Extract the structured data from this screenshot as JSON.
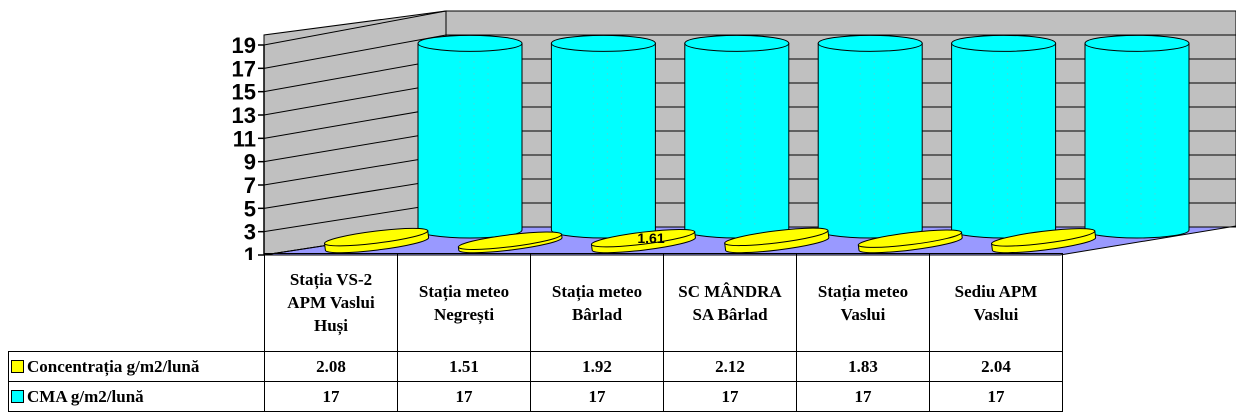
{
  "colors": {
    "concentration": "#ffff00",
    "cma": "#00ffff",
    "floor": "#9999ff",
    "walls": "#c0c0c0"
  },
  "chart_data": {
    "type": "bar",
    "categories": [
      "Stația VS-2 APM Vaslui Huși",
      "Stația meteo Negrești",
      "Stația meteo Bârlad",
      "SC MÂNDRA SA Bârlad",
      "Stația meteo Vaslui",
      "Sediu APM Vaslui"
    ],
    "series": [
      {
        "name": "Concentrația g/m2/lună",
        "values": [
          2.08,
          1.51,
          1.92,
          2.12,
          1.83,
          2.04
        ]
      },
      {
        "name": "CMA g/m2/lună",
        "values": [
          17,
          17,
          17,
          17,
          17,
          17
        ]
      }
    ],
    "yticks": [
      "1",
      "3",
      "5",
      "7",
      "9",
      "11",
      "13",
      "15",
      "17",
      "19"
    ],
    "ylim": [
      1,
      19
    ],
    "data_label": "1.61",
    "legend": "data table",
    "grid": true
  }
}
